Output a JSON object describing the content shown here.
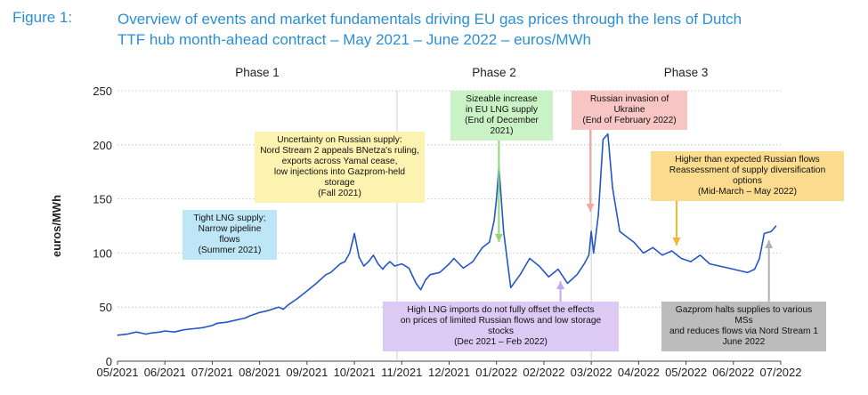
{
  "figure_label": "Figure 1:",
  "title_line1": "Overview of events and market fundamentals driving EU gas prices through the lens of Dutch",
  "title_line2": "TTF hub month-ahead contract – May 2021 – June 2022 – euros/MWh",
  "chart_data": {
    "type": "line",
    "title": "Overview of events and market fundamentals driving EU gas prices through the lens of Dutch TTF hub month-ahead contract – May 2021 – June 2022 – euros/MWh",
    "xlabel": "",
    "ylabel": "euros/MWh",
    "ylim": [
      0,
      250
    ],
    "yticks": [
      0,
      50,
      100,
      150,
      200,
      250
    ],
    "xlim": [
      0,
      14
    ],
    "xtick_labels": [
      "05/2021",
      "06/2021",
      "07/2021",
      "08/2021",
      "09/2021",
      "10/2021",
      "11/2021",
      "12/2021",
      "01/2022",
      "02/2022",
      "03/2022",
      "04/2022",
      "05/2022",
      "06/2022",
      "07/2022"
    ],
    "phases": [
      "Phase 1",
      "Phase 2",
      "Phase 3"
    ],
    "phase_boundaries": [
      5.9,
      10.0
    ],
    "series": [
      {
        "name": "TTF month-ahead",
        "color": "#2457c5",
        "x": [
          0,
          0.2,
          0.4,
          0.5,
          0.6,
          0.7,
          0.9,
          1.0,
          1.2,
          1.4,
          1.6,
          1.8,
          2.0,
          2.1,
          2.3,
          2.5,
          2.7,
          2.8,
          3.0,
          3.2,
          3.4,
          3.5,
          3.6,
          3.8,
          4.0,
          4.2,
          4.4,
          4.5,
          4.6,
          4.7,
          4.8,
          4.9,
          5.0,
          5.1,
          5.2,
          5.3,
          5.4,
          5.5,
          5.6,
          5.65,
          5.75,
          5.85,
          6.0,
          6.15,
          6.3,
          6.4,
          6.5,
          6.6,
          6.8,
          7.0,
          7.1,
          7.3,
          7.5,
          7.7,
          7.85,
          7.95,
          8.0,
          8.05,
          8.15,
          8.3,
          8.5,
          8.7,
          8.9,
          9.1,
          9.3,
          9.5,
          9.7,
          9.85,
          9.95,
          10.0,
          10.05,
          10.15,
          10.25,
          10.35,
          10.45,
          10.6,
          10.75,
          10.9,
          11.1,
          11.3,
          11.5,
          11.7,
          11.9,
          12.1,
          12.3,
          12.5,
          12.7,
          12.9,
          13.1,
          13.3,
          13.45,
          13.55,
          13.65,
          13.8,
          13.9
        ],
        "values": [
          24,
          25,
          27,
          26,
          25,
          26,
          27,
          28,
          27,
          29,
          30,
          31,
          33,
          35,
          36,
          38,
          40,
          42,
          45,
          47,
          50,
          48,
          52,
          58,
          65,
          72,
          80,
          82,
          86,
          90,
          92,
          100,
          118,
          96,
          88,
          92,
          98,
          90,
          85,
          88,
          92,
          88,
          90,
          86,
          72,
          66,
          75,
          80,
          82,
          90,
          95,
          86,
          92,
          105,
          110,
          130,
          150,
          180,
          120,
          68,
          80,
          95,
          88,
          78,
          85,
          72,
          80,
          90,
          98,
          120,
          100,
          135,
          205,
          210,
          160,
          120,
          115,
          110,
          100,
          105,
          98,
          102,
          95,
          92,
          98,
          90,
          88,
          86,
          84,
          82,
          85,
          95,
          118,
          120,
          125
        ]
      }
    ],
    "annotations": [
      {
        "lines": [
          "Tight LNG supply;",
          "Narrow pipeline flows",
          "(Summer 2021)"
        ],
        "color": "#bfe6f7"
      },
      {
        "lines": [
          "Uncertainty on Russian supply:",
          "Nord Stream 2 appeals BNetza's ruling,",
          "exports across Yamal cease,",
          "low injections into Gazprom-held storage",
          "(Fall 2021)"
        ],
        "color": "#fcf3b0"
      },
      {
        "lines": [
          "Sizeable increase",
          "in EU LNG supply",
          "(End of December 2021)"
        ],
        "color": "#c9f2c5"
      },
      {
        "lines": [
          "Russian invasion of Ukraine",
          "(End of February 2022)"
        ],
        "color": "#f7c6c4"
      },
      {
        "lines": [
          "Higher than expected Russian flows",
          "Reassessment of supply diversification options",
          "(Mid-March – May 2022)"
        ],
        "color": "#fbdc8e"
      },
      {
        "lines": [
          "High LNG imports do not fully offset the effects",
          "on prices of limited Russian flows and low storage stocks",
          "(Dec 2021 – Feb 2022)"
        ],
        "color": "#dccaf5"
      },
      {
        "lines": [
          "Gazprom halts supplies to various MSs",
          "and reduces flows via Nord Stream 1",
          "June 2022"
        ],
        "color": "#bcbcbc"
      }
    ]
  }
}
